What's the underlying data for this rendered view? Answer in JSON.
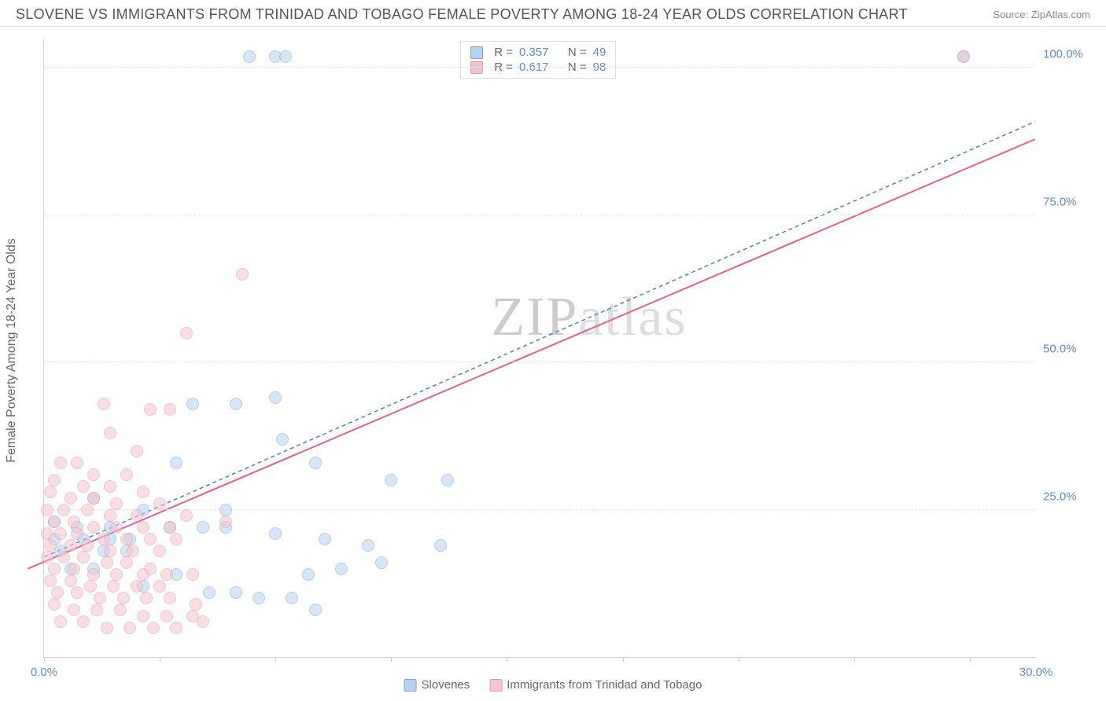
{
  "header": {
    "title": "SLOVENE VS IMMIGRANTS FROM TRINIDAD AND TOBAGO FEMALE POVERTY AMONG 18-24 YEAR OLDS CORRELATION CHART",
    "source": "Source: ZipAtlas.com"
  },
  "chart": {
    "type": "scatter",
    "ylabel": "Female Poverty Among 18-24 Year Olds",
    "watermark": "ZIPatlas",
    "background_color": "#ffffff",
    "grid_color": "#e5e5e5",
    "axis_color": "#d0d0d0",
    "tick_color": "#5b8bd4",
    "xlim": [
      0,
      30
    ],
    "ylim": [
      0,
      105
    ],
    "xticks": [
      {
        "pos": 0,
        "label": "0.0%"
      },
      {
        "pos": 30,
        "label": "30.0%"
      }
    ],
    "xtick_marks": [
      0,
      3.5,
      7,
      10.5,
      14,
      17.5,
      21,
      24.5,
      28
    ],
    "yticks": [
      {
        "pos": 25,
        "label": "25.0%"
      },
      {
        "pos": 50,
        "label": "50.0%"
      },
      {
        "pos": 75,
        "label": "75.0%"
      },
      {
        "pos": 100,
        "label": "100.0%"
      }
    ],
    "series": [
      {
        "name": "Slovenes",
        "fill": "#b9d0ec",
        "stroke": "#7ba4d8",
        "fill_opacity": 0.55,
        "trend_color": "#4a7fd0",
        "trend_dash": "5,4",
        "trend_width": 1.5,
        "trend_start": [
          0,
          17
        ],
        "trend_end": [
          30,
          91
        ],
        "R": "0.357",
        "N": "49",
        "points": [
          [
            6.2,
            102
          ],
          [
            7.0,
            102
          ],
          [
            7.3,
            102
          ],
          [
            27.8,
            102
          ],
          [
            7.0,
            44
          ],
          [
            5.8,
            43
          ],
          [
            4.5,
            43
          ],
          [
            7.2,
            37
          ],
          [
            8.2,
            33
          ],
          [
            4.0,
            33
          ],
          [
            10.5,
            30
          ],
          [
            12.2,
            30
          ],
          [
            1.5,
            27
          ],
          [
            3.0,
            25
          ],
          [
            5.5,
            25
          ],
          [
            0.3,
            23
          ],
          [
            1.0,
            22
          ],
          [
            2.0,
            22
          ],
          [
            3.8,
            22
          ],
          [
            4.8,
            22
          ],
          [
            5.5,
            22
          ],
          [
            7.0,
            21
          ],
          [
            8.5,
            20
          ],
          [
            9.8,
            19
          ],
          [
            12.0,
            19
          ],
          [
            0.3,
            20
          ],
          [
            1.2,
            20
          ],
          [
            2.0,
            20
          ],
          [
            2.6,
            20
          ],
          [
            0.5,
            18
          ],
          [
            1.8,
            18
          ],
          [
            2.5,
            18
          ],
          [
            10.2,
            16
          ],
          [
            9.0,
            15
          ],
          [
            5.0,
            11
          ],
          [
            5.8,
            11
          ],
          [
            6.5,
            10
          ],
          [
            7.5,
            10
          ],
          [
            8.2,
            8
          ],
          [
            0.8,
            15
          ],
          [
            1.5,
            15
          ],
          [
            4.0,
            14
          ],
          [
            3.0,
            12
          ],
          [
            8.0,
            14
          ]
        ]
      },
      {
        "name": "Immigrants from Trinidad and Tobago",
        "fill": "#f2c4cf",
        "stroke": "#e796ab",
        "fill_opacity": 0.55,
        "trend_color": "#e75f8a",
        "trend_dash": "",
        "trend_width": 2,
        "trend_start": [
          -0.5,
          15
        ],
        "trend_end": [
          30,
          88
        ],
        "R": "0.617",
        "N": "98",
        "points": [
          [
            27.8,
            102
          ],
          [
            6.0,
            65
          ],
          [
            4.3,
            55
          ],
          [
            1.8,
            43
          ],
          [
            3.2,
            42
          ],
          [
            3.8,
            42
          ],
          [
            2.0,
            38
          ],
          [
            2.8,
            35
          ],
          [
            0.5,
            33
          ],
          [
            1.0,
            33
          ],
          [
            1.5,
            31
          ],
          [
            2.5,
            31
          ],
          [
            0.3,
            30
          ],
          [
            1.2,
            29
          ],
          [
            2.0,
            29
          ],
          [
            3.0,
            28
          ],
          [
            0.2,
            28
          ],
          [
            0.8,
            27
          ],
          [
            1.5,
            27
          ],
          [
            2.2,
            26
          ],
          [
            3.5,
            26
          ],
          [
            0.1,
            25
          ],
          [
            0.6,
            25
          ],
          [
            1.3,
            25
          ],
          [
            2.0,
            24
          ],
          [
            2.8,
            24
          ],
          [
            4.3,
            24
          ],
          [
            0.3,
            23
          ],
          [
            0.9,
            23
          ],
          [
            1.5,
            22
          ],
          [
            2.2,
            22
          ],
          [
            3.0,
            22
          ],
          [
            3.8,
            22
          ],
          [
            5.5,
            23
          ],
          [
            0.1,
            21
          ],
          [
            0.5,
            21
          ],
          [
            1.0,
            21
          ],
          [
            1.8,
            20
          ],
          [
            2.5,
            20
          ],
          [
            3.2,
            20
          ],
          [
            4.0,
            20
          ],
          [
            0.2,
            19
          ],
          [
            0.8,
            19
          ],
          [
            1.3,
            19
          ],
          [
            2.0,
            18
          ],
          [
            2.7,
            18
          ],
          [
            3.5,
            18
          ],
          [
            0.1,
            17
          ],
          [
            0.6,
            17
          ],
          [
            1.2,
            17
          ],
          [
            1.9,
            16
          ],
          [
            2.5,
            16
          ],
          [
            3.2,
            15
          ],
          [
            0.3,
            15
          ],
          [
            0.9,
            15
          ],
          [
            1.5,
            14
          ],
          [
            2.2,
            14
          ],
          [
            3.0,
            14
          ],
          [
            3.7,
            14
          ],
          [
            4.5,
            14
          ],
          [
            0.2,
            13
          ],
          [
            0.8,
            13
          ],
          [
            1.4,
            12
          ],
          [
            2.1,
            12
          ],
          [
            2.8,
            12
          ],
          [
            3.5,
            12
          ],
          [
            0.4,
            11
          ],
          [
            1.0,
            11
          ],
          [
            1.7,
            10
          ],
          [
            2.4,
            10
          ],
          [
            3.1,
            10
          ],
          [
            3.8,
            10
          ],
          [
            4.6,
            9
          ],
          [
            0.3,
            9
          ],
          [
            0.9,
            8
          ],
          [
            1.6,
            8
          ],
          [
            2.3,
            8
          ],
          [
            3.0,
            7
          ],
          [
            3.7,
            7
          ],
          [
            4.5,
            7
          ],
          [
            0.5,
            6
          ],
          [
            1.2,
            6
          ],
          [
            1.9,
            5
          ],
          [
            2.6,
            5
          ],
          [
            3.3,
            5
          ],
          [
            4.0,
            5
          ],
          [
            4.8,
            6
          ]
        ]
      }
    ],
    "bottom_legend": [
      {
        "label": "Slovenes",
        "fill": "#b9d0ec",
        "stroke": "#7ba4d8"
      },
      {
        "label": "Immigrants from Trinidad and Tobago",
        "fill": "#f2c4cf",
        "stroke": "#e796ab"
      }
    ]
  }
}
